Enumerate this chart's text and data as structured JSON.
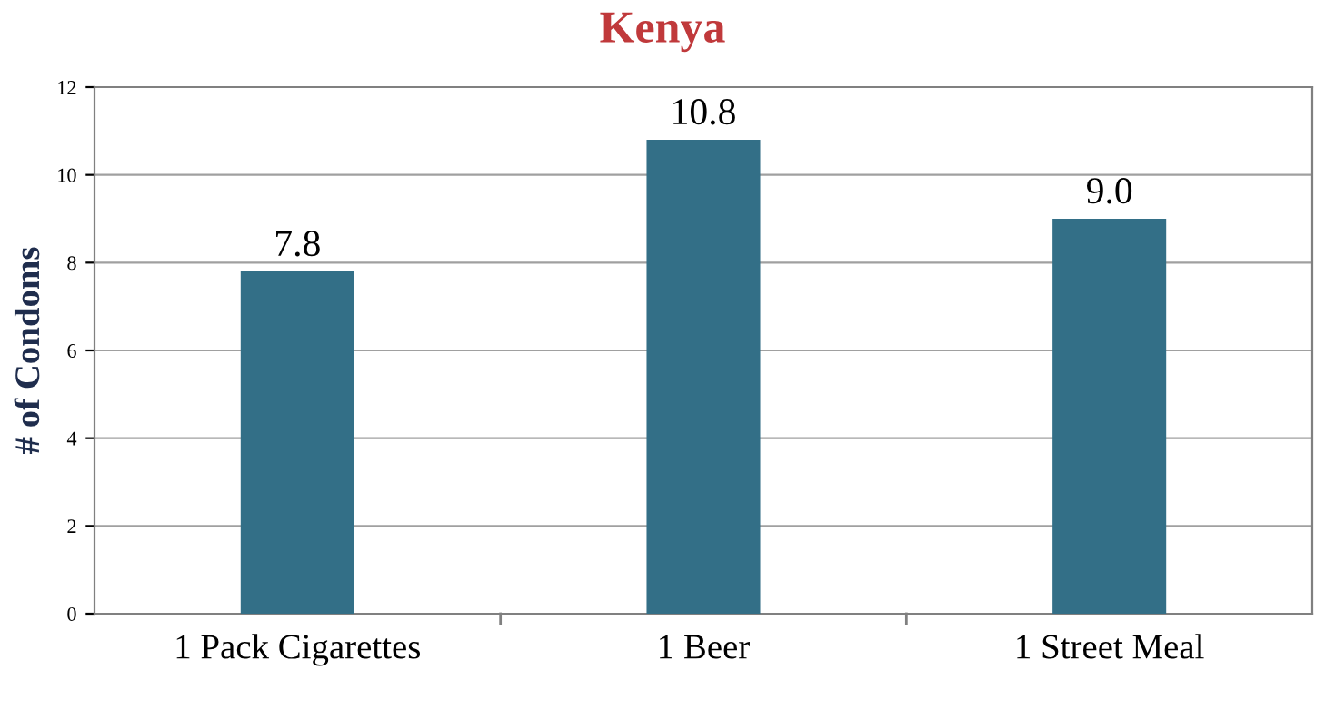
{
  "chart_data": {
    "type": "bar",
    "title": "Kenya",
    "ylabel": "# of Condoms",
    "categories": [
      "1 Pack Cigarettes",
      "1 Beer",
      "1 Street Meal"
    ],
    "values": [
      7.8,
      10.8,
      9.0
    ],
    "value_labels": [
      "7.8",
      "10.8",
      "9.0"
    ],
    "color": "#336f87",
    "ylim": [
      0,
      12
    ],
    "yticks": [
      0,
      2,
      4,
      6,
      8,
      10,
      12
    ],
    "grid": "y"
  }
}
